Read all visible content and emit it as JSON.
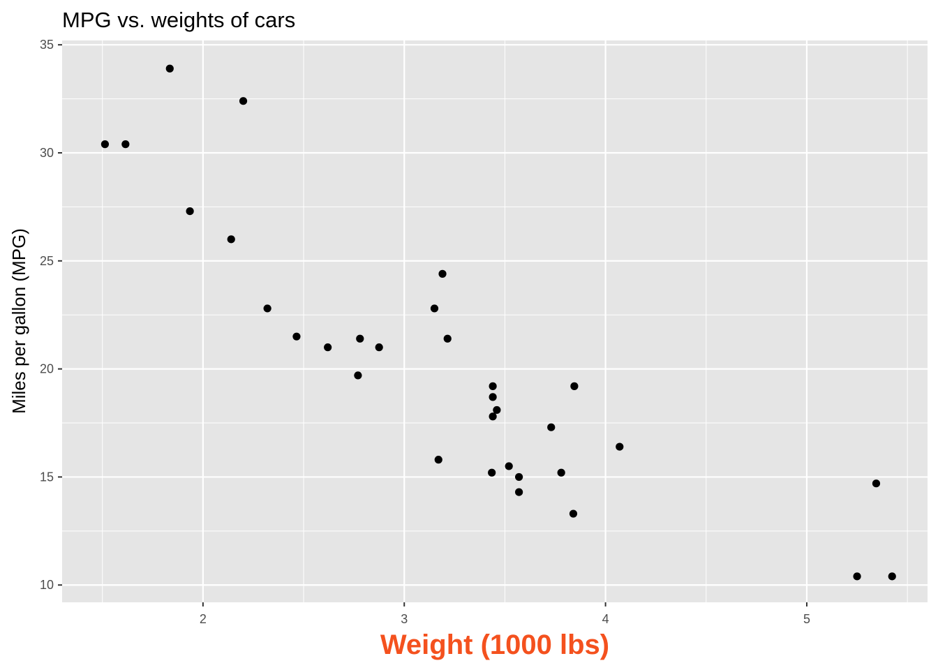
{
  "chart_data": {
    "type": "scatter",
    "title": "MPG vs. weights of cars",
    "xlabel": "Weight (1000 lbs)",
    "ylabel": "Miles per gallon (MPG)",
    "xlim": [
      1.3,
      5.6
    ],
    "ylim": [
      9.2,
      35.2
    ],
    "x_ticks": [
      2,
      3,
      4,
      5
    ],
    "x_tick_labels": [
      "2",
      "3",
      "4",
      "5"
    ],
    "y_ticks": [
      10,
      15,
      20,
      25,
      30,
      35
    ],
    "y_tick_labels": [
      "10",
      "15",
      "20",
      "25",
      "30",
      "35"
    ],
    "grid": true,
    "colors": {
      "panel": "#e5e5e5",
      "grid": "#ffffff",
      "point": "#000000",
      "xlabel": "#f4511e"
    },
    "x": [
      2.62,
      2.875,
      2.32,
      3.215,
      3.44,
      3.46,
      3.57,
      3.19,
      3.15,
      3.44,
      3.44,
      4.07,
      3.73,
      3.78,
      5.25,
      5.424,
      5.345,
      2.2,
      1.615,
      1.835,
      2.465,
      3.52,
      3.435,
      3.84,
      3.845,
      1.935,
      2.14,
      1.513,
      3.17,
      2.77,
      3.57,
      2.78
    ],
    "y": [
      21.0,
      21.0,
      22.8,
      21.4,
      18.7,
      18.1,
      14.3,
      24.4,
      22.8,
      19.2,
      17.8,
      16.4,
      17.3,
      15.2,
      10.4,
      10.4,
      14.7,
      32.4,
      30.4,
      33.9,
      21.5,
      15.5,
      15.2,
      13.3,
      19.2,
      27.3,
      26.0,
      30.4,
      15.8,
      19.7,
      15.0,
      21.4
    ]
  }
}
